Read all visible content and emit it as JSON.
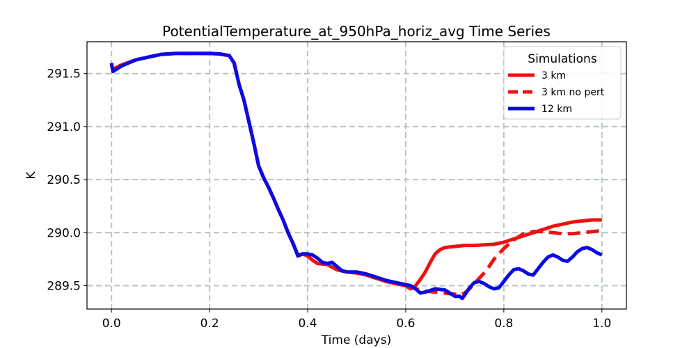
{
  "chart_data": {
    "type": "line",
    "title": "PotentialTemperature_at_950hPa_horiz_avg Time Series",
    "xlabel": "Time (days)",
    "ylabel": "K",
    "xlim": [
      -0.05,
      1.05
    ],
    "ylim": [
      289.28,
      291.8
    ],
    "xticks": [
      0.0,
      0.2,
      0.4,
      0.6,
      0.8,
      1.0
    ],
    "xtick_labels": [
      "0.0",
      "0.2",
      "0.4",
      "0.6",
      "0.8",
      "1.0"
    ],
    "yticks": [
      289.5,
      290.0,
      290.5,
      291.0,
      291.5
    ],
    "ytick_labels": [
      "289.5",
      "290.0",
      "290.5",
      "291.0",
      "291.5"
    ],
    "grid": true,
    "legend": {
      "title": "Simulations",
      "position": "top-right"
    },
    "series": [
      {
        "name": "3 km",
        "color": "#ee1111",
        "style": "solid",
        "x": [
          0.0,
          0.003,
          0.02,
          0.05,
          0.08,
          0.1,
          0.13,
          0.16,
          0.2,
          0.22,
          0.24,
          0.25,
          0.26,
          0.27,
          0.28,
          0.29,
          0.3,
          0.31,
          0.32,
          0.33,
          0.34,
          0.35,
          0.36,
          0.37,
          0.38,
          0.39,
          0.4,
          0.41,
          0.42,
          0.44,
          0.46,
          0.48,
          0.5,
          0.52,
          0.54,
          0.56,
          0.58,
          0.6,
          0.61,
          0.62,
          0.63,
          0.64,
          0.65,
          0.66,
          0.67,
          0.68,
          0.7,
          0.72,
          0.74,
          0.76,
          0.78,
          0.8,
          0.82,
          0.84,
          0.86,
          0.88,
          0.9,
          0.92,
          0.94,
          0.96,
          0.98,
          1.0
        ],
        "y": [
          291.58,
          291.54,
          291.58,
          291.63,
          291.66,
          291.68,
          291.69,
          291.69,
          291.69,
          291.685,
          291.67,
          291.6,
          291.4,
          291.25,
          291.05,
          290.85,
          290.63,
          290.52,
          290.43,
          290.33,
          290.22,
          290.12,
          290.0,
          289.9,
          289.79,
          289.8,
          289.78,
          289.74,
          289.71,
          289.7,
          289.65,
          289.63,
          289.62,
          289.6,
          289.57,
          289.54,
          289.52,
          289.5,
          289.47,
          289.5,
          289.56,
          289.63,
          289.72,
          289.8,
          289.84,
          289.86,
          289.87,
          289.88,
          289.88,
          289.885,
          289.89,
          289.91,
          289.94,
          289.97,
          290.0,
          290.03,
          290.06,
          290.08,
          290.1,
          290.11,
          290.12,
          290.12
        ]
      },
      {
        "name": "3 km no pert",
        "color": "#ee1111",
        "style": "dashed",
        "x": [
          0.0,
          0.003,
          0.02,
          0.05,
          0.08,
          0.1,
          0.13,
          0.16,
          0.2,
          0.22,
          0.24,
          0.25,
          0.26,
          0.27,
          0.28,
          0.29,
          0.3,
          0.31,
          0.32,
          0.33,
          0.34,
          0.35,
          0.36,
          0.37,
          0.38,
          0.39,
          0.4,
          0.41,
          0.42,
          0.44,
          0.46,
          0.48,
          0.5,
          0.52,
          0.54,
          0.56,
          0.58,
          0.6,
          0.62,
          0.64,
          0.66,
          0.68,
          0.7,
          0.71,
          0.72,
          0.73,
          0.74,
          0.75,
          0.76,
          0.77,
          0.78,
          0.8,
          0.82,
          0.84,
          0.86,
          0.88,
          0.9,
          0.92,
          0.94,
          0.96,
          0.98,
          1.0
        ],
        "y": [
          291.58,
          291.54,
          291.58,
          291.63,
          291.66,
          291.68,
          291.69,
          291.69,
          291.69,
          291.685,
          291.67,
          291.6,
          291.4,
          291.25,
          291.05,
          290.85,
          290.63,
          290.52,
          290.43,
          290.33,
          290.22,
          290.12,
          290.0,
          289.9,
          289.79,
          289.8,
          289.78,
          289.74,
          289.71,
          289.7,
          289.65,
          289.63,
          289.62,
          289.6,
          289.57,
          289.54,
          289.52,
          289.5,
          289.47,
          289.45,
          289.44,
          289.43,
          289.42,
          289.41,
          289.43,
          289.47,
          289.52,
          289.57,
          289.62,
          289.68,
          289.75,
          289.85,
          289.93,
          289.99,
          290.01,
          290.01,
          290.0,
          289.99,
          289.99,
          290.0,
          290.01,
          290.02
        ]
      },
      {
        "name": "12 km",
        "color": "#0a0ae6",
        "style": "solid",
        "x": [
          0.0,
          0.003,
          0.02,
          0.05,
          0.08,
          0.1,
          0.13,
          0.16,
          0.2,
          0.22,
          0.24,
          0.25,
          0.26,
          0.27,
          0.28,
          0.29,
          0.3,
          0.31,
          0.32,
          0.33,
          0.34,
          0.35,
          0.36,
          0.37,
          0.38,
          0.39,
          0.4,
          0.41,
          0.42,
          0.43,
          0.44,
          0.45,
          0.46,
          0.47,
          0.48,
          0.5,
          0.52,
          0.54,
          0.56,
          0.58,
          0.6,
          0.61,
          0.62,
          0.63,
          0.64,
          0.66,
          0.68,
          0.69,
          0.7,
          0.71,
          0.715,
          0.72,
          0.73,
          0.74,
          0.75,
          0.76,
          0.77,
          0.78,
          0.79,
          0.8,
          0.81,
          0.82,
          0.83,
          0.84,
          0.85,
          0.86,
          0.87,
          0.88,
          0.89,
          0.9,
          0.91,
          0.92,
          0.93,
          0.94,
          0.95,
          0.96,
          0.97,
          0.98,
          0.99,
          1.0
        ],
        "y": [
          291.6,
          291.52,
          291.57,
          291.63,
          291.66,
          291.68,
          291.69,
          291.69,
          291.69,
          291.685,
          291.67,
          291.6,
          291.4,
          291.25,
          291.05,
          290.85,
          290.63,
          290.52,
          290.43,
          290.33,
          290.22,
          290.12,
          290.0,
          289.9,
          289.78,
          289.8,
          289.8,
          289.79,
          289.76,
          289.72,
          289.71,
          289.72,
          289.68,
          289.64,
          289.63,
          289.63,
          289.61,
          289.58,
          289.55,
          289.53,
          289.51,
          289.5,
          289.47,
          289.43,
          289.44,
          289.47,
          289.46,
          289.43,
          289.4,
          289.4,
          289.38,
          289.41,
          289.48,
          289.53,
          289.54,
          289.52,
          289.49,
          289.47,
          289.48,
          289.54,
          289.6,
          289.65,
          289.66,
          289.64,
          289.61,
          289.6,
          289.66,
          289.72,
          289.77,
          289.79,
          289.77,
          289.74,
          289.73,
          289.77,
          289.82,
          289.85,
          289.86,
          289.84,
          289.81,
          289.79
        ]
      }
    ]
  }
}
